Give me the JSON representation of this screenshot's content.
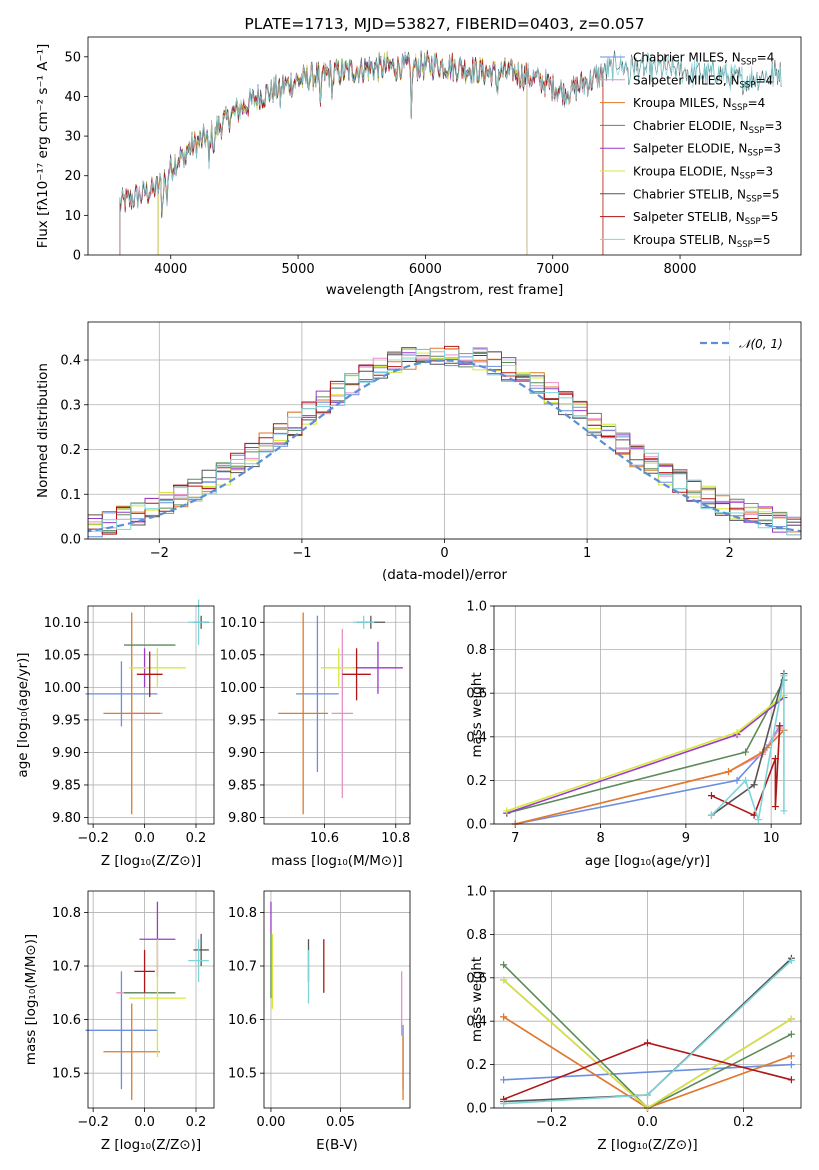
{
  "colors": {
    "Chabrier MILES": "#6b8ee0",
    "Salpeter MILES": "#e690c8",
    "Kroupa MILES": "#e07a28",
    "Chabrier ELODIE": "#5b8a5b",
    "Salpeter ELODIE": "#9a3bc8",
    "Kroupa ELODIE": "#d6e838",
    "Chabrier STELIB": "#555555",
    "Salpeter STELIB": "#b01616",
    "Kroupa STELIB": "#7fd4d8"
  },
  "chart_data": [
    {
      "id": "spectrum",
      "type": "line",
      "title": "PLATE=1713, MJD=53827, FIBERID=0403, z=0.057",
      "xlabel": "wavelength [Angstrom, rest frame]",
      "ylabel": "Flux [fλ10⁻¹⁷ erg cm⁻² s⁻¹ A⁻¹]",
      "xlim": [
        3350,
        8950
      ],
      "ylim": [
        0,
        55
      ],
      "xticks": [
        4000,
        5000,
        6000,
        7000,
        8000
      ],
      "yticks": [
        0,
        10,
        20,
        30,
        40,
        50
      ],
      "grid": false,
      "legend": "right",
      "continuum": [
        [
          3600,
          13
        ],
        [
          3750,
          15
        ],
        [
          3900,
          17
        ],
        [
          4000,
          22
        ],
        [
          4100,
          26
        ],
        [
          4300,
          30
        ],
        [
          4500,
          36
        ],
        [
          4700,
          40
        ],
        [
          4900,
          43
        ],
        [
          5100,
          45
        ],
        [
          5300,
          46
        ],
        [
          5500,
          47
        ],
        [
          5700,
          47.5
        ],
        [
          5900,
          47.5
        ],
        [
          6100,
          48
        ],
        [
          6300,
          47
        ],
        [
          6500,
          46
        ],
        [
          6700,
          46
        ],
        [
          6900,
          44
        ],
        [
          7100,
          41
        ],
        [
          7300,
          44
        ],
        [
          7500,
          48
        ],
        [
          7700,
          47
        ],
        [
          7900,
          47
        ],
        [
          8100,
          46
        ],
        [
          8300,
          46
        ],
        [
          8500,
          44
        ],
        [
          8800,
          46
        ]
      ],
      "absorption_lines": [
        [
          3933,
          9
        ],
        [
          3968,
          8
        ],
        [
          4102,
          5
        ],
        [
          4300,
          8
        ],
        [
          4340,
          5
        ],
        [
          4861,
          4
        ],
        [
          5175,
          10
        ],
        [
          5270,
          5
        ],
        [
          5890,
          11
        ],
        [
          6563,
          5
        ],
        [
          7600,
          4
        ]
      ],
      "series": [
        {
          "name": "Chabrier MILES",
          "label": "Chabrier MILES, N",
          "sub": "SSP",
          "n": "=4",
          "xmin": 3600,
          "xmax": 7400
        },
        {
          "name": "Salpeter MILES",
          "label": "Salpeter MILES, N",
          "sub": "SSP",
          "n": "=4",
          "xmin": 3600,
          "xmax": 7400
        },
        {
          "name": "Kroupa MILES",
          "label": "Kroupa MILES, N",
          "sub": "SSP",
          "n": "=4",
          "xmin": 3600,
          "xmax": 7400
        },
        {
          "name": "Chabrier ELODIE",
          "label": "Chabrier ELODIE, N",
          "sub": "SSP",
          "n": "=3",
          "xmin": 3900,
          "xmax": 6800
        },
        {
          "name": "Salpeter ELODIE",
          "label": "Salpeter ELODIE, N",
          "sub": "SSP",
          "n": "=3",
          "xmin": 3900,
          "xmax": 6800
        },
        {
          "name": "Kroupa ELODIE",
          "label": "Kroupa ELODIE, N",
          "sub": "SSP",
          "n": "=3",
          "xmin": 3900,
          "xmax": 6800
        },
        {
          "name": "Chabrier STELIB",
          "label": "Chabrier STELIB, N",
          "sub": "SSP",
          "n": "=5",
          "xmin": 3600,
          "xmax": 8800
        },
        {
          "name": "Salpeter STELIB",
          "label": "Salpeter STELIB, N",
          "sub": "SSP",
          "n": "=5",
          "xmin": 3600,
          "xmax": 7400
        },
        {
          "name": "Kroupa STELIB",
          "label": "Kroupa STELIB, N",
          "sub": "SSP",
          "n": "=5",
          "xmin": 3600,
          "xmax": 8800
        }
      ]
    },
    {
      "id": "residuals",
      "type": "histogram",
      "xlabel": "(data-model)/error",
      "ylabel": "Normed distribution",
      "xlim": [
        -2.5,
        2.5
      ],
      "ylim": [
        0,
        0.485
      ],
      "xticks": [
        -2,
        -1,
        0,
        1,
        2
      ],
      "yticks": [
        0.0,
        0.1,
        0.2,
        0.3,
        0.4
      ],
      "grid": true,
      "legend": "top-right",
      "bin_width": 0.1,
      "reference": {
        "name": "𝒩(0, 1)",
        "color": "#5b8fd6",
        "mean": 0,
        "sigma": 1
      }
    },
    {
      "id": "age-vs-Z",
      "type": "errorbar",
      "xlabel": "Z [log₁₀(Z/Z⊙)]",
      "ylabel": "age  [log₁₀(age/yr)]",
      "xlim": [
        -0.22,
        0.27
      ],
      "ylim": [
        9.79,
        10.125
      ],
      "xticks": [
        -0.2,
        0.0,
        0.2
      ],
      "yticks": [
        9.8,
        9.85,
        9.9,
        9.95,
        10.0,
        10.05,
        10.1
      ],
      "grid": true,
      "points": [
        {
          "name": "Chabrier MILES",
          "x": -0.09,
          "xerr": 0.14,
          "y": 9.99,
          "yerr": 0.05
        },
        {
          "name": "Salpeter MILES",
          "x": 0.0,
          "xerr": 0.07,
          "y": 9.96,
          "yerr": 0.0
        },
        {
          "name": "Kroupa MILES",
          "x": -0.05,
          "xerr": 0.11,
          "y": 9.96,
          "yerr": 0.155
        },
        {
          "name": "Chabrier ELODIE",
          "x": 0.02,
          "xerr": 0.1,
          "y": 10.065,
          "yerr": 0.0
        },
        {
          "name": "Salpeter ELODIE",
          "x": 0.0,
          "xerr": 0.0,
          "y": 10.03,
          "yerr": 0.03
        },
        {
          "name": "Kroupa ELODIE",
          "x": 0.05,
          "xerr": 0.11,
          "y": 10.03,
          "yerr": 0.03
        },
        {
          "name": "Chabrier STELIB",
          "x": 0.22,
          "xerr": 0.03,
          "y": 10.1,
          "yerr": 0.01
        },
        {
          "name": "Salpeter STELIB",
          "x": 0.02,
          "xerr": 0.05,
          "y": 10.02,
          "yerr": 0.035
        },
        {
          "name": "Kroupa STELIB",
          "x": 0.21,
          "xerr": 0.04,
          "y": 10.1,
          "yerr": 0.035
        }
      ]
    },
    {
      "id": "age-vs-mass",
      "type": "errorbar",
      "xlabel": "mass [log₁₀(M/M⊙)]",
      "ylabel": "",
      "xlim": [
        10.43,
        10.84
      ],
      "ylim": [
        9.79,
        10.125
      ],
      "xticks": [
        10.6,
        10.8
      ],
      "yticks": [
        9.8,
        9.85,
        9.9,
        9.95,
        10.0,
        10.05,
        10.1
      ],
      "grid": true,
      "points": [
        {
          "name": "Chabrier MILES",
          "x": 10.58,
          "xerr": 0.06,
          "y": 9.99,
          "yerr": 0.12
        },
        {
          "name": "Salpeter MILES",
          "x": 10.65,
          "xerr": 0.03,
          "y": 9.96,
          "yerr": 0.13
        },
        {
          "name": "Kroupa MILES",
          "x": 10.54,
          "xerr": 0.07,
          "y": 9.96,
          "yerr": 0.155
        },
        {
          "name": "Chabrier ELODIE",
          "x": 10.66,
          "xerr": 0.0,
          "y": 10.065,
          "yerr": 0.0
        },
        {
          "name": "Salpeter ELODIE",
          "x": 10.75,
          "xerr": 0.07,
          "y": 10.03,
          "yerr": 0.04
        },
        {
          "name": "Kroupa ELODIE",
          "x": 10.64,
          "xerr": 0.05,
          "y": 10.03,
          "yerr": 0.03
        },
        {
          "name": "Chabrier STELIB",
          "x": 10.73,
          "xerr": 0.04,
          "y": 10.1,
          "yerr": 0.01
        },
        {
          "name": "Salpeter STELIB",
          "x": 10.69,
          "xerr": 0.04,
          "y": 10.02,
          "yerr": 0.04
        },
        {
          "name": "Kroupa STELIB",
          "x": 10.71,
          "xerr": 0.03,
          "y": 10.1,
          "yerr": 0.01
        }
      ]
    },
    {
      "id": "weight-vs-age",
      "type": "line",
      "xlabel": "age  [log₁₀(age/yr)]",
      "ylabel": "mass weight",
      "xlim": [
        6.75,
        10.35
      ],
      "ylim": [
        0,
        1
      ],
      "xticks": [
        7,
        8,
        9,
        10
      ],
      "yticks": [
        0.0,
        0.2,
        0.4,
        0.6,
        0.8,
        1.0
      ],
      "grid": true,
      "series": [
        {
          "name": "Chabrier MILES",
          "points": [
            [
              7.0,
              0.0
            ],
            [
              9.6,
              0.2
            ],
            [
              9.95,
              0.35
            ],
            [
              10.1,
              0.45
            ]
          ]
        },
        {
          "name": "Salpeter MILES",
          "points": [
            [
              7.0,
              0.0
            ],
            [
              9.5,
              0.24
            ],
            [
              9.9,
              0.32
            ],
            [
              10.1,
              0.44
            ]
          ]
        },
        {
          "name": "Kroupa MILES",
          "points": [
            [
              7.0,
              0.0
            ],
            [
              9.5,
              0.24
            ],
            [
              9.9,
              0.33
            ],
            [
              10.15,
              0.43
            ]
          ]
        },
        {
          "name": "Chabrier ELODIE",
          "points": [
            [
              6.9,
              0.05
            ],
            [
              9.7,
              0.33
            ],
            [
              10.15,
              0.66
            ]
          ]
        },
        {
          "name": "Salpeter ELODIE",
          "points": [
            [
              6.9,
              0.05
            ],
            [
              9.6,
              0.41
            ],
            [
              10.15,
              0.58
            ]
          ]
        },
        {
          "name": "Kroupa ELODIE",
          "points": [
            [
              6.9,
              0.06
            ],
            [
              9.6,
              0.42
            ],
            [
              10.15,
              0.59
            ]
          ]
        },
        {
          "name": "Chabrier STELIB",
          "points": [
            [
              9.3,
              0.04
            ],
            [
              9.8,
              0.18
            ],
            [
              10.15,
              0.69
            ]
          ]
        },
        {
          "name": "Salpeter STELIB",
          "points": [
            [
              9.3,
              0.13
            ],
            [
              9.8,
              0.04
            ],
            [
              10.05,
              0.3
            ],
            [
              10.05,
              0.08
            ],
            [
              10.1,
              0.45
            ]
          ]
        },
        {
          "name": "Kroupa STELIB",
          "points": [
            [
              9.3,
              0.04
            ],
            [
              9.7,
              0.2
            ],
            [
              9.85,
              0.02
            ],
            [
              10.15,
              0.68
            ],
            [
              10.15,
              0.06
            ]
          ]
        }
      ]
    },
    {
      "id": "mass-vs-Z",
      "type": "errorbar",
      "xlabel": "Z [log₁₀(Z/Z⊙)]",
      "ylabel": "mass [log₁₀(M/M⊙)]",
      "xlim": [
        -0.22,
        0.27
      ],
      "ylim": [
        10.435,
        10.84
      ],
      "xticks": [
        -0.2,
        0.0,
        0.2
      ],
      "yticks": [
        10.5,
        10.6,
        10.7,
        10.8
      ],
      "grid": true,
      "points": [
        {
          "name": "Chabrier MILES",
          "x": -0.09,
          "xerr": 0.14,
          "y": 10.58,
          "yerr": 0.11
        },
        {
          "name": "Salpeter MILES",
          "x": 0.0,
          "xerr": 0.11,
          "y": 10.65,
          "yerr": 0.0
        },
        {
          "name": "Kroupa MILES",
          "x": -0.05,
          "xerr": 0.11,
          "y": 10.54,
          "yerr": 0.09
        },
        {
          "name": "Chabrier ELODIE",
          "x": 0.02,
          "xerr": 0.1,
          "y": 10.65,
          "yerr": 0.0
        },
        {
          "name": "Salpeter ELODIE",
          "x": 0.05,
          "xerr": 0.07,
          "y": 10.75,
          "yerr": 0.07
        },
        {
          "name": "Kroupa ELODIE",
          "x": 0.05,
          "xerr": 0.11,
          "y": 10.64,
          "yerr": 0.11
        },
        {
          "name": "Chabrier STELIB",
          "x": 0.22,
          "xerr": 0.03,
          "y": 10.73,
          "yerr": 0.03
        },
        {
          "name": "Salpeter STELIB",
          "x": -0.0,
          "xerr": 0.04,
          "y": 10.69,
          "yerr": 0.04
        },
        {
          "name": "Kroupa STELIB",
          "x": 0.21,
          "xerr": 0.04,
          "y": 10.71,
          "yerr": 0.04
        }
      ]
    },
    {
      "id": "mass-vs-ebv",
      "type": "errorbar",
      "xlabel": "E(B-V)",
      "ylabel": "",
      "xlim": [
        -0.005,
        0.1
      ],
      "ylim": [
        10.435,
        10.84
      ],
      "xticks": [
        0.0,
        0.05
      ],
      "yticks": [
        10.5,
        10.6,
        10.7,
        10.8
      ],
      "grid": true,
      "points": [
        {
          "name": "Chabrier MILES",
          "x": 0.095,
          "xerr": 0.0,
          "y": 10.53,
          "yerr": 0.06
        },
        {
          "name": "Salpeter MILES",
          "x": 0.094,
          "xerr": 0.0,
          "y": 10.63,
          "yerr": 0.06
        },
        {
          "name": "Kroupa MILES",
          "x": 0.095,
          "xerr": 0.0,
          "y": 10.51,
          "yerr": 0.06
        },
        {
          "name": "Chabrier ELODIE",
          "x": 0.0,
          "xerr": 0.0,
          "y": 10.7,
          "yerr": 0.06
        },
        {
          "name": "Salpeter ELODIE",
          "x": 0.0,
          "xerr": 0.0,
          "y": 10.79,
          "yerr": 0.03
        },
        {
          "name": "Kroupa ELODIE",
          "x": 0.001,
          "xerr": 0.0,
          "y": 10.69,
          "yerr": 0.07
        },
        {
          "name": "Chabrier STELIB",
          "x": 0.027,
          "xerr": 0.0,
          "y": 10.71,
          "yerr": 0.04
        },
        {
          "name": "Salpeter STELIB",
          "x": 0.038,
          "xerr": 0.0,
          "y": 10.7,
          "yerr": 0.05
        },
        {
          "name": "Kroupa STELIB",
          "x": 0.027,
          "xerr": 0.0,
          "y": 10.68,
          "yerr": 0.05
        }
      ]
    },
    {
      "id": "weight-vs-Z",
      "type": "line",
      "xlabel": "Z [log₁₀(Z/Z⊙)]",
      "ylabel": "mass weight",
      "xlim": [
        -0.32,
        0.32
      ],
      "ylim": [
        0,
        1
      ],
      "xticks": [
        -0.2,
        0.0,
        0.2
      ],
      "yticks": [
        0.0,
        0.2,
        0.4,
        0.6,
        0.8,
        1.0
      ],
      "grid": true,
      "series": [
        {
          "name": "Chabrier MILES",
          "points": [
            [
              -0.3,
              0.13
            ],
            [
              0.3,
              0.2
            ]
          ]
        },
        {
          "name": "Salpeter MILES",
          "points": [
            [
              -0.3,
              0.42
            ],
            [
              0.0,
              0.0
            ],
            [
              0.3,
              0.24
            ]
          ]
        },
        {
          "name": "Kroupa MILES",
          "points": [
            [
              -0.3,
              0.42
            ],
            [
              0.0,
              0.0
            ],
            [
              0.3,
              0.24
            ]
          ]
        },
        {
          "name": "Chabrier ELODIE",
          "points": [
            [
              -0.3,
              0.66
            ],
            [
              0.0,
              0.0
            ],
            [
              0.3,
              0.34
            ]
          ]
        },
        {
          "name": "Salpeter ELODIE",
          "points": [
            [
              -0.3,
              0.59
            ],
            [
              0.0,
              0.0
            ],
            [
              0.3,
              0.41
            ]
          ]
        },
        {
          "name": "Kroupa ELODIE",
          "points": [
            [
              -0.3,
              0.59
            ],
            [
              0.0,
              0.0
            ],
            [
              0.3,
              0.41
            ]
          ]
        },
        {
          "name": "Chabrier STELIB",
          "points": [
            [
              -0.3,
              0.03
            ],
            [
              0.0,
              0.06
            ],
            [
              0.3,
              0.69
            ]
          ]
        },
        {
          "name": "Salpeter STELIB",
          "points": [
            [
              -0.3,
              0.04
            ],
            [
              0.0,
              0.3
            ],
            [
              0.3,
              0.13
            ]
          ]
        },
        {
          "name": "Kroupa STELIB",
          "points": [
            [
              -0.3,
              0.02
            ],
            [
              0.0,
              0.06
            ],
            [
              0.3,
              0.68
            ]
          ]
        }
      ]
    }
  ]
}
